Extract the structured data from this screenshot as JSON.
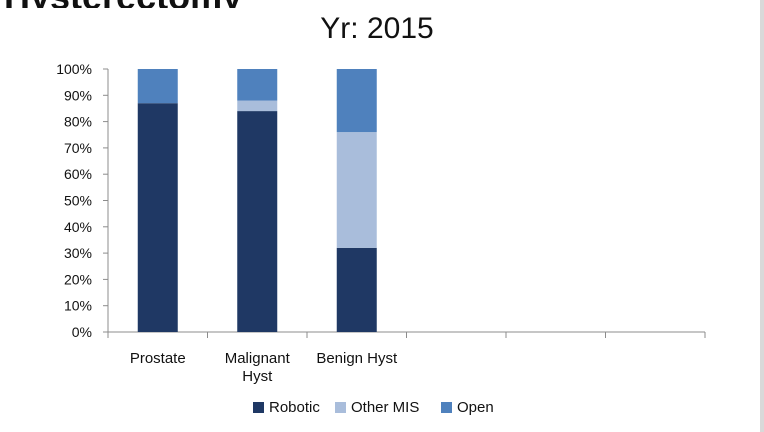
{
  "page": {
    "cut_heading": "Hysterectomy"
  },
  "chart_data": {
    "type": "bar",
    "stacked": true,
    "title": "Yr: 2015",
    "xlabel": "",
    "ylabel": "",
    "ylim": [
      0,
      100
    ],
    "y_ticks": [
      "0%",
      "10%",
      "20%",
      "30%",
      "40%",
      "50%",
      "60%",
      "70%",
      "80%",
      "90%",
      "100%"
    ],
    "y_tick_values": [
      0,
      10,
      20,
      30,
      40,
      50,
      60,
      70,
      80,
      90,
      100
    ],
    "categories": [
      "Prostate",
      "Malignant Hyst",
      "Benign Hyst",
      "",
      "",
      ""
    ],
    "category_lines": [
      [
        "Prostate"
      ],
      [
        "Malignant",
        "Hyst"
      ],
      [
        "Benign Hyst"
      ],
      [],
      [],
      []
    ],
    "series": [
      {
        "name": "Robotic",
        "color": "#1f3864",
        "values": [
          87,
          84,
          32,
          0,
          0,
          0
        ]
      },
      {
        "name": "Other MIS",
        "color": "#a9bddb",
        "values": [
          0,
          4,
          44,
          0,
          0,
          0
        ]
      },
      {
        "name": "Open",
        "color": "#4f81bd",
        "values": [
          13,
          12,
          24,
          0,
          0,
          0
        ]
      }
    ],
    "grid": false,
    "legend_position": "bottom"
  }
}
